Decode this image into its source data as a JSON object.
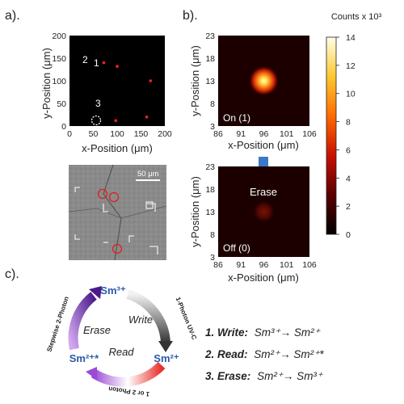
{
  "figure": {
    "panels": {
      "a": {
        "letter": "a).",
        "scatter": {
          "xlabel": "x-Position (μm)",
          "ylabel": "y-Position (μm)",
          "xticks": [
            "0",
            "50",
            "100",
            "150",
            "200"
          ],
          "yticks": [
            "0",
            "50",
            "100",
            "150",
            "200"
          ],
          "point_labels": [
            "2",
            "1",
            "3"
          ]
        },
        "sem": {
          "scalebar_label": "50 μm"
        }
      },
      "b": {
        "letter": "b).",
        "colorbar_title": "Counts x 10³",
        "colorbar_ticks": [
          "14",
          "12",
          "10",
          "8",
          "6",
          "4",
          "2",
          "0"
        ],
        "top_map": {
          "state_label": "On (1)",
          "xlabel": "x-Position (μm)",
          "ylabel": "y-Position (μm)",
          "xticks": [
            "86",
            "91",
            "96",
            "101",
            "106"
          ],
          "yticks": [
            "23",
            "18",
            "13",
            "8",
            "3"
          ]
        },
        "arrow_label": "Erase",
        "bottom_map": {
          "state_label": "Off (0)",
          "xlabel": "x-Position (μm)",
          "ylabel": "y-Position (μm)",
          "xticks": [
            "86",
            "91",
            "96",
            "101",
            "106"
          ],
          "yticks": [
            "23",
            "18",
            "13",
            "8",
            "3"
          ]
        }
      },
      "c": {
        "letter": "c).",
        "cycle": {
          "sm3": "Sm³⁺",
          "sm2": "Sm²⁺",
          "sm2ex": "Sm²⁺*",
          "write": "Write",
          "read": "Read",
          "erase": "Erase",
          "arc_uvc": "1-Photon UV-C",
          "arc_read": "1 or 2 Photon",
          "arc_erase": "Stepwise 2-Photon"
        },
        "steps": [
          {
            "num": "1. Write:",
            "text": "Sm³⁺→ Sm²⁺"
          },
          {
            "num": "2. Read:",
            "text": "Sm²⁺→ Sm²⁺*"
          },
          {
            "num": "3. Erase:",
            "text": "Sm²⁺→ Sm³⁺"
          }
        ]
      }
    },
    "chart_data": [
      {
        "type": "scatter",
        "xlabel": "x-Position (μm)",
        "ylabel": "y-Position (μm)",
        "xlim": [
          0,
          200
        ],
        "ylim": [
          0,
          200
        ],
        "x": [
          72,
          100,
          170,
          162,
          97
        ],
        "y": [
          140,
          132,
          100,
          20,
          12
        ]
      },
      {
        "type": "heatmap",
        "xlabel": "x-Position (μm)",
        "ylabel": "y-Position (μm)",
        "xlim": [
          86,
          106
        ],
        "ylim": [
          3,
          23
        ],
        "peak_x": 96,
        "peak_y": 13,
        "peak_counts_x1000": 14
      },
      {
        "type": "heatmap",
        "xlabel": "x-Position (μm)",
        "ylabel": "y-Position (μm)",
        "xlim": [
          86,
          106
        ],
        "ylim": [
          3,
          23
        ],
        "peak_x": 96,
        "peak_y": 13,
        "peak_counts_x1000": 2
      }
    ]
  }
}
